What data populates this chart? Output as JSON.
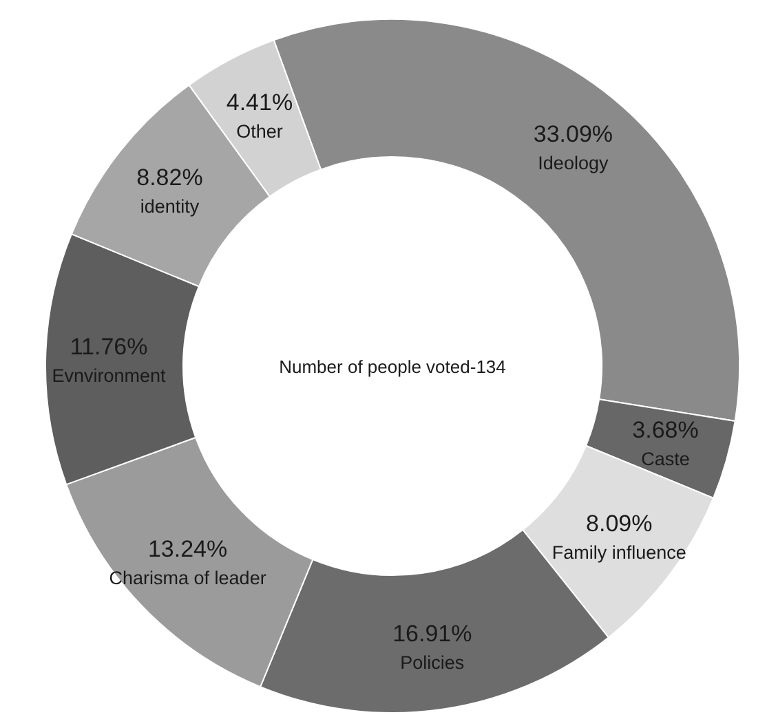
{
  "chart_data": {
    "type": "donut",
    "categories": [
      "Ideology",
      "Caste",
      "Family influence",
      "Policies",
      "Charisma of leader",
      "Evnvironment",
      "identity",
      "Other"
    ],
    "values": [
      33.09,
      3.68,
      8.09,
      16.91,
      13.24,
      11.76,
      8.82,
      4.41
    ],
    "value_labels": [
      "33.09%",
      "3.68%",
      "8.09%",
      "16.91%",
      "13.24%",
      "11.76%",
      "8.82%",
      "4.41%"
    ],
    "colors": [
      "#8a8a8a",
      "#676767",
      "#dedede",
      "#6c6c6c",
      "#9b9b9b",
      "#5e5e5e",
      "#a6a6a6",
      "#d2d2d2"
    ],
    "annotations": [
      "Number of people voted-134"
    ]
  }
}
